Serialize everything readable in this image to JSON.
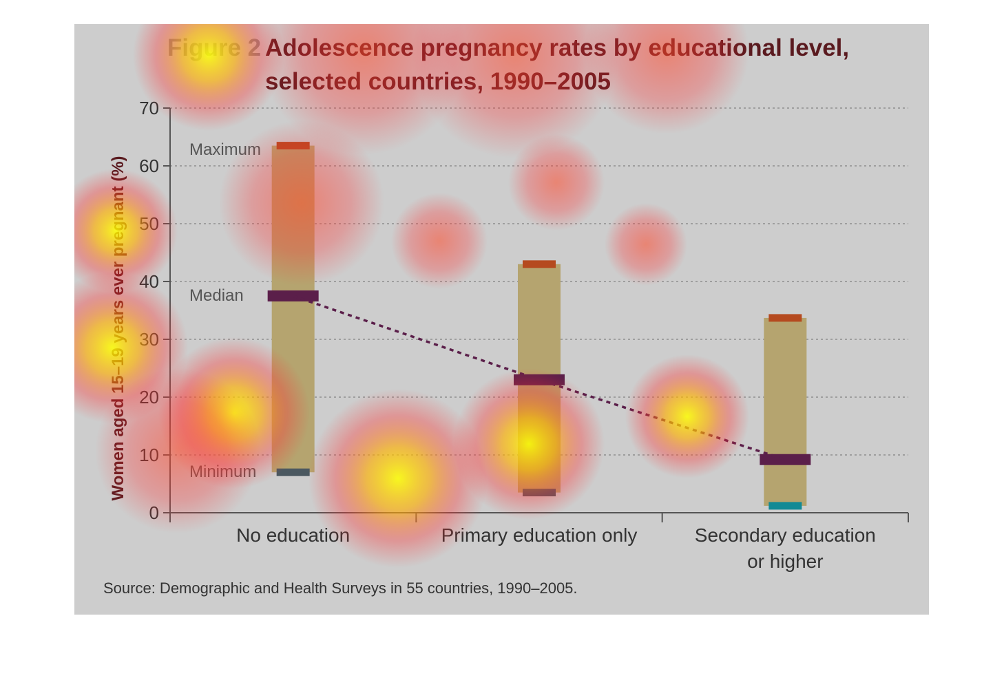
{
  "figure": {
    "label": "Figure 2",
    "title_line1": "Adolescence pregnancy rates by educational level,",
    "title_line2": "selected countries, 1990–2005",
    "source": "Source: Demographic and Health Surveys in 55 countries, 1990–2005."
  },
  "chart_data": {
    "type": "range",
    "ylabel": "Women aged 15–19 years ever pregnant (%)",
    "ylim": [
      0,
      70
    ],
    "yticks": [
      0,
      10,
      20,
      30,
      40,
      50,
      60,
      70
    ],
    "grid": true,
    "categories": [
      {
        "lines": [
          "No education"
        ],
        "min": 7,
        "median": 37.5,
        "max": 63.5
      },
      {
        "lines": [
          "Primary education only"
        ],
        "min": 3.5,
        "median": 23,
        "max": 43
      },
      {
        "lines": [
          "Secondary education",
          "or higher"
        ],
        "min": 1.2,
        "median": 9.2,
        "max": 33.7
      }
    ],
    "annotations": {
      "maximum": "Maximum",
      "median": "Median",
      "minimum": "Minimum"
    },
    "colors": {
      "background": "#cdcdcd",
      "range_bar": "#b5a46f",
      "max_marker": "#b54a1f",
      "min_marker": "#4b5860",
      "min_marker_secondary": "#128a95",
      "median_marker": "#5b1f4a",
      "median_line": "#5b1f4a",
      "title_label": "#8a8a8a",
      "title": "#5a1a1f",
      "axis": "#555555",
      "text": "#333333"
    }
  }
}
